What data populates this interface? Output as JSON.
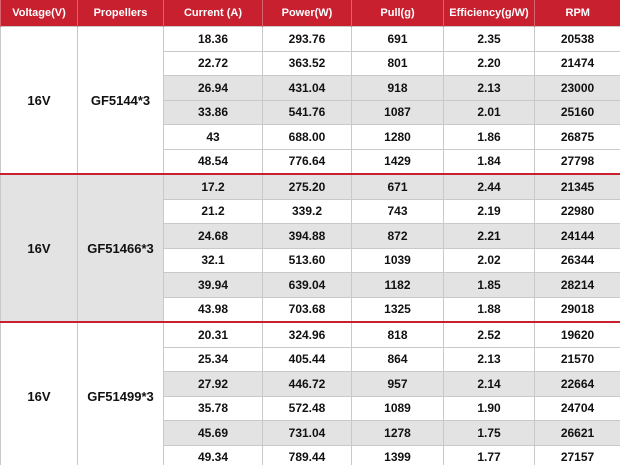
{
  "table": {
    "header": [
      "Voltage(V)",
      "Propellers",
      "Current (A)",
      "Power(W)",
      "Pull(g)",
      "Efficiency(g/W)",
      "RPM"
    ],
    "groups": [
      {
        "voltage": "16V",
        "propeller": "GF5144*3",
        "rows": [
          [
            "18.36",
            "293.76",
            "691",
            "2.35",
            "20538"
          ],
          [
            "22.72",
            "363.52",
            "801",
            "2.20",
            "21474"
          ],
          [
            "26.94",
            "431.04",
            "918",
            "2.13",
            "23000"
          ],
          [
            "33.86",
            "541.76",
            "1087",
            "2.01",
            "25160"
          ],
          [
            "43",
            "688.00",
            "1280",
            "1.86",
            "26875"
          ],
          [
            "48.54",
            "776.64",
            "1429",
            "1.84",
            "27798"
          ]
        ]
      },
      {
        "voltage": "16V",
        "propeller": "GF51466*3",
        "rows": [
          [
            "17.2",
            "275.20",
            "671",
            "2.44",
            "21345"
          ],
          [
            "21.2",
            "339.2",
            "743",
            "2.19",
            "22980"
          ],
          [
            "24.68",
            "394.88",
            "872",
            "2.21",
            "24144"
          ],
          [
            "32.1",
            "513.60",
            "1039",
            "2.02",
            "26344"
          ],
          [
            "39.94",
            "639.04",
            "1182",
            "1.85",
            "28214"
          ],
          [
            "43.98",
            "703.68",
            "1325",
            "1.88",
            "29018"
          ]
        ]
      },
      {
        "voltage": "16V",
        "propeller": "GF51499*3",
        "rows": [
          [
            "20.31",
            "324.96",
            "818",
            "2.52",
            "19620"
          ],
          [
            "25.34",
            "405.44",
            "864",
            "2.13",
            "21570"
          ],
          [
            "27.92",
            "446.72",
            "957",
            "2.14",
            "22664"
          ],
          [
            "35.78",
            "572.48",
            "1089",
            "1.90",
            "24704"
          ],
          [
            "45.69",
            "731.04",
            "1278",
            "1.75",
            "26621"
          ],
          [
            "49.34",
            "789.44",
            "1399",
            "1.77",
            "27157"
          ]
        ]
      }
    ]
  }
}
